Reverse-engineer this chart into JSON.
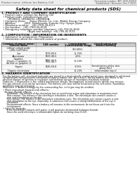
{
  "bg_color": "#ffffff",
  "header_left": "Product name: Lithium Ion Battery Cell",
  "header_right_line1": "Document number: NPC-SDS-00010",
  "header_right_line2": "Established / Revision: Dec.7.2010",
  "main_title": "Safety data sheet for chemical products (SDS)",
  "section1_title": "1. PRODUCT AND COMPANY IDENTIFICATION",
  "section1_lines": [
    "  • Product name: Lithium Ion Battery Cell",
    "  • Product code: Cylindrical-type cell",
    "        UR18650J, UR18650U, UR18650A",
    "  • Company name:     Sanyo Electric Co., Ltd., Mobile Energy Company",
    "  • Address:           2001  Kamikosaka, Sumoto-City, Hyogo, Japan",
    "  • Telephone number:   +81-(799)-26-4111",
    "  • Fax number:   +81-(799)-26-4129",
    "  • Emergency telephone number (daytime): +81-799-26-3642",
    "                                  (Night and holiday): +81-799-26-3131"
  ],
  "section2_title": "2. COMPOSITION / INFORMATION ON INGREDIENTS",
  "section2_sub": "  • Substance or preparation: Preparation",
  "section2_sub2": "  • Information about the chemical nature of product:",
  "table_col_labels": [
    "Common chemical name /\nGeneral name",
    "CAS number",
    "Concentration /\nConcentration range",
    "Classification and\nhazard labeling"
  ],
  "table_rows": [
    [
      "Lithium cobalt oxide\n(LiMn-Co(PO4)x)",
      "-",
      "(30-60%)",
      "-"
    ],
    [
      "Iron",
      "7439-89-6",
      "15-25%",
      "-"
    ],
    [
      "Aluminium",
      "7429-90-5",
      "2-5%",
      "-"
    ],
    [
      "Graphite\n(Finely in graphite-1)\n(AI-film on graphite-1)",
      "7782-42-5\n7782-44-7",
      "10-20%",
      "-"
    ],
    [
      "Copper",
      "7440-50-8",
      "5-15%",
      "Sensitization of the skin\ngroup R4.2"
    ],
    [
      "Organic electrolyte",
      "-",
      "10-20%",
      "Inflammable liquid"
    ]
  ],
  "section3_title": "3. HAZARDS IDENTIFICATION",
  "section3_lines": [
    "  For the battery cell, chemical materials are stored in a hermetically sealed metal case, designed to withstand",
    "  temperatures and pressures encountered during normal use. As a result, during normal use, there is no",
    "  physical danger of ignition or explosion and thermal danger of hazardous materials leakage.",
    "  However, if exposed to a fire, added mechanical shocks, decomposed, armed electro whose any misuse,",
    "  the gas release vent can be operated. The battery cell case will be breached at the cell-vents, hazardous",
    "  materials may be released.",
    "  Moreover, if heated strongly by the surrounding fire, solid gas may be emitted."
  ],
  "section3_bullet1": "  • Most important hazard and effects:",
  "section3_human": "    Human health effects:",
  "section3_human_lines": [
    "        Inhalation: The release of the electrolyte has an anesthesia action and stimulates in respiratory tract.",
    "        Skin contact: The release of the electrolyte stimulates a skin. The electrolyte skin contact causes a",
    "        sore and stimulation on the skin.",
    "        Eye contact: The release of the electrolyte stimulates eyes. The electrolyte eye contact causes a sore",
    "        and stimulation on the eye. Especially, a substance that causes a strong inflammation of the eye is",
    "        contained.",
    "        Environmental effects: Since a battery cell remains in the environment, do not throw out it into the",
    "        environment."
  ],
  "section3_specific": "  • Specific hazards:",
  "section3_specific_lines": [
    "        If the electrolyte contacts with water, it will generate detrimental hydrogen fluoride.",
    "        Since the used electrolyte is inflammable liquid, do not bring close to fire."
  ]
}
